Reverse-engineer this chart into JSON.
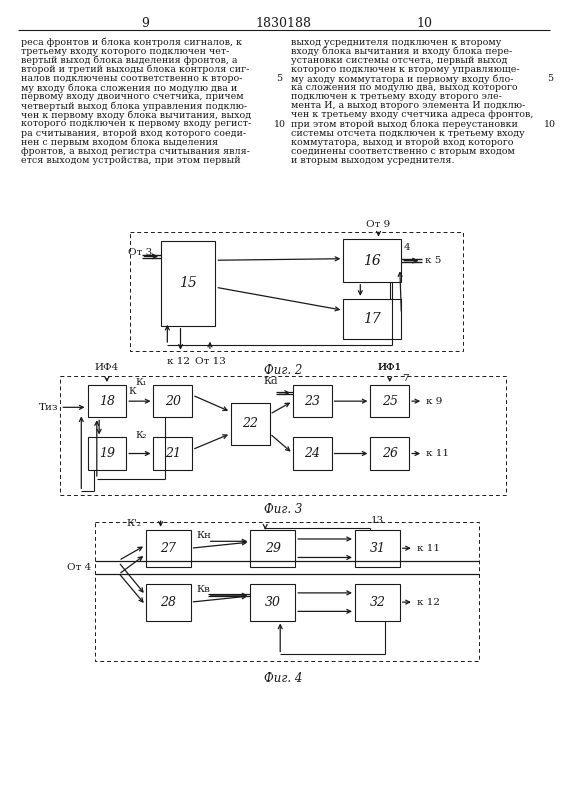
{
  "page_title": "1830188",
  "page_left": "9",
  "page_right": "10",
  "fig2_label": "Фиг. 2",
  "fig3_label": "Фиг. 3",
  "fig4_label": "Фиг. 4",
  "left_col_lines": [
    "реса фронтов и блока контроля сигналов, к",
    "третьему входу которого подключен чет-",
    "вертый выход блока выделения фронтов, а",
    "второй и третий выходы блока контроля сиг-",
    "налов подключены соответственно к второ-",
    "му входу блока сложения по модулю два и",
    "первому входу двоичного счетчика, причем",
    "четвертый выход блока управления подклю-",
    "чен к первому входу блока вычитания, выход",
    "которого подключен к первому входу регист-",
    "ра считывания, второй вход которого соеди-",
    "нен с первым входом блока выделения",
    "фронтов, а выход регистра считывания явля-",
    "ется выходом устройства, при этом первый"
  ],
  "right_col_lines": [
    "выход усреднителя подключен к второму",
    "входу блока вычитания и входу блока пере-",
    "установки системы отсчета, первый выход",
    "которого подключен к второму управляюще-",
    "му аходу коммутатора и первому входу бло-",
    "ка сложения по модулю два, выход которого",
    "подключен к третьему входу второго эле-",
    "мента И, а выход второго элемента И подклю-",
    "чен к третьему входу счетчика адреса фронтов,",
    "при этом второй выход блока переустановки",
    "системы отсчета подключен к третьему входу",
    "коммутатора, выход и второй вход которого",
    "соединены соответственно с вторым входом",
    "и вторым выходом усреднителя."
  ],
  "background_color": "#ffffff",
  "line_color": "#1a1a1a",
  "text_color": "#1a1a1a"
}
